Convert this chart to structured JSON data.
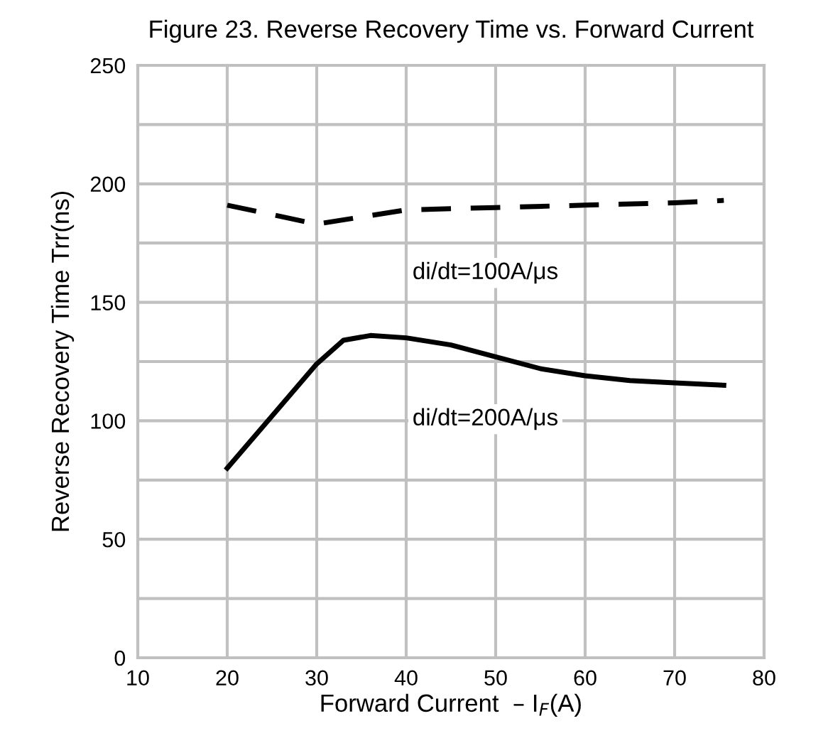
{
  "chart_data": {
    "type": "line",
    "title": "Figure 23. Reverse Recovery Time vs. Forward Current",
    "xlabel": "Forward Current  – I$_{F}$(A)",
    "ylabel": "Reverse Recovery Time Trr(ns)",
    "series": [
      {
        "name": "di/dt=100A/μs",
        "color": "#000000",
        "line_style": "dashed",
        "x": [
          20,
          30,
          40,
          50,
          60,
          70,
          75.5
        ],
        "values": [
          191,
          183,
          189,
          190,
          191,
          192,
          193
        ]
      },
      {
        "name": "di/dt=200A/μs",
        "color": "#000000",
        "line_style": "solid",
        "x": [
          20,
          25,
          30,
          33,
          36,
          40,
          45,
          50,
          55,
          60,
          65,
          70,
          75.5
        ],
        "values": [
          80,
          102,
          124,
          134,
          136,
          135,
          132,
          127,
          122,
          119,
          117,
          116,
          115
        ]
      }
    ],
    "xlim": [
      10,
      80
    ],
    "xticks": [
      10,
      20,
      30,
      40,
      50,
      60,
      70,
      80
    ],
    "ylim": [
      0,
      250
    ],
    "yticks": [
      0,
      50,
      100,
      150,
      200,
      250
    ],
    "grid": true,
    "legend": false
  }
}
